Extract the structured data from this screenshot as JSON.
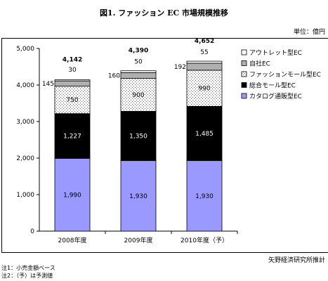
{
  "header": {
    "title": "図1. ファッション EC 市場規模推移",
    "unit": "単位：億円"
  },
  "footer": {
    "credit": "矢野経済研究所推計",
    "notes": [
      "注1：小売金額ベース",
      "注2：（予）は予測値"
    ]
  },
  "chart_data": {
    "type": "bar",
    "stacked": true,
    "categories": [
      "2008年度",
      "2009年度",
      "2010年度（予）"
    ],
    "ylim": [
      0,
      5000
    ],
    "yticks": [
      "0",
      "1,000",
      "2,000",
      "3,000",
      "4,000",
      "5,000"
    ],
    "ytick_values": [
      0,
      1000,
      2000,
      3000,
      4000,
      5000
    ],
    "legend_position": "right",
    "grid": false,
    "totals": [
      "4,142",
      "4,390",
      "4,652"
    ],
    "series": [
      {
        "name": "カタログ通販型EC",
        "values": [
          1990,
          1930,
          1930
        ],
        "labels": [
          "1,990",
          "1,930",
          "1,930"
        ],
        "color": "#9999ff"
      },
      {
        "name": "総合モール型EC",
        "values": [
          1227,
          1350,
          1485
        ],
        "labels": [
          "1,227",
          "1,350",
          "1,485"
        ],
        "color": "#000000"
      },
      {
        "name": "ファッションモール型EC",
        "values": [
          750,
          900,
          990
        ],
        "labels": [
          "750",
          "900",
          "990"
        ],
        "color": "#ffffff"
      },
      {
        "name": "自社EC",
        "values": [
          145,
          160,
          192
        ],
        "labels": [
          "145",
          "160",
          "192"
        ],
        "color": "#b0b0b0"
      },
      {
        "name": "アウトレット型EC",
        "values": [
          30,
          50,
          55
        ],
        "labels": [
          "30",
          "50",
          "55"
        ],
        "color": "#ffffff"
      }
    ]
  }
}
